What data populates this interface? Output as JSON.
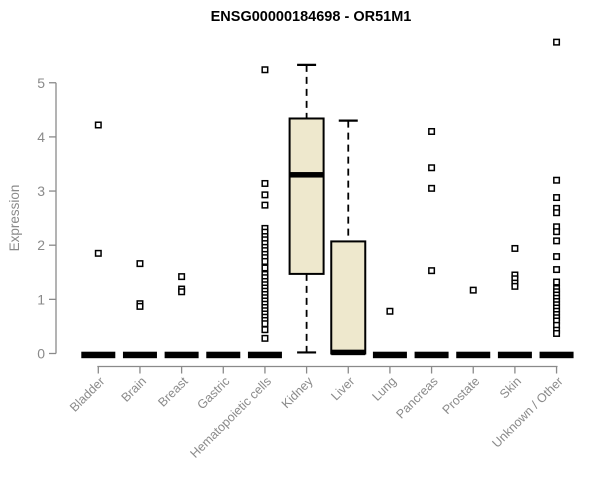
{
  "chart_data": {
    "type": "box",
    "title": "ENSG00000184698 - OR51M1",
    "ylabel": "Expression",
    "xlabel": "",
    "ylim": [
      0,
      5
    ],
    "y_ticks": [
      "0",
      "1",
      "2",
      "3",
      "4",
      "5"
    ],
    "grid": false,
    "legend": false,
    "categories": [
      "Bladder",
      "Brain",
      "Breast",
      "Gastric",
      "Hematopoietic cells",
      "Kidney",
      "Liver",
      "Lung",
      "Pancreas",
      "Prostate",
      "Skin",
      "Unknown / Other"
    ],
    "series": [
      {
        "name": "Bladder",
        "box": {
          "low": 0,
          "q1": 0,
          "med": 0,
          "q3": 0,
          "high": 0
        },
        "outliers": [
          4.22,
          1.85
        ]
      },
      {
        "name": "Brain",
        "box": {
          "low": 0,
          "q1": 0,
          "med": 0,
          "q3": 0,
          "high": 0
        },
        "outliers": [
          1.66,
          0.92,
          0.87
        ]
      },
      {
        "name": "Breast",
        "box": {
          "low": 0,
          "q1": 0,
          "med": 0,
          "q3": 0,
          "high": 0
        },
        "outliers": [
          1.42,
          1.19,
          1.14
        ]
      },
      {
        "name": "Gastric",
        "box": {
          "low": 0,
          "q1": 0,
          "med": 0,
          "q3": 0,
          "high": 0
        },
        "outliers": []
      },
      {
        "name": "Hematopoietic cells",
        "box": {
          "low": 0,
          "q1": 0,
          "med": 0,
          "q3": 0,
          "high": 0
        },
        "outliers": [
          5.24,
          3.14,
          2.93,
          2.74,
          2.31,
          2.24,
          2.16,
          2.1,
          2.03,
          1.96,
          1.9,
          1.83,
          1.77,
          1.7,
          1.58,
          1.46,
          1.4,
          1.33,
          1.27,
          1.21,
          1.15,
          1.09,
          1.03,
          0.97,
          0.91,
          0.85,
          0.79,
          0.73,
          0.67,
          0.61,
          0.55,
          0.44,
          0.28
        ]
      },
      {
        "name": "Kidney",
        "box": {
          "low": 0.02,
          "q1": 1.47,
          "med": 3.3,
          "q3": 4.34,
          "high": 5.33
        },
        "outliers": []
      },
      {
        "name": "Liver",
        "box": {
          "low": 0,
          "q1": 0,
          "med": 0.02,
          "q3": 2.07,
          "high": 4.3
        },
        "outliers": []
      },
      {
        "name": "Lung",
        "box": {
          "low": 0,
          "q1": 0,
          "med": 0,
          "q3": 0,
          "high": 0
        },
        "outliers": [
          0.78
        ]
      },
      {
        "name": "Pancreas",
        "box": {
          "low": 0,
          "q1": 0,
          "med": 0,
          "q3": 0,
          "high": 0
        },
        "outliers": [
          4.1,
          3.43,
          3.05,
          1.53
        ]
      },
      {
        "name": "Prostate",
        "box": {
          "low": 0,
          "q1": 0,
          "med": 0,
          "q3": 0,
          "high": 0
        },
        "outliers": [
          1.17
        ]
      },
      {
        "name": "Skin",
        "box": {
          "low": 0,
          "q1": 0,
          "med": 0,
          "q3": 0,
          "high": 0
        },
        "outliers": [
          1.94,
          1.45,
          1.38,
          1.3,
          1.24
        ]
      },
      {
        "name": "Unknown / Other",
        "box": {
          "low": 0,
          "q1": 0,
          "med": 0,
          "q3": 0,
          "high": 0
        },
        "outliers": [
          5.75,
          3.2,
          2.88,
          2.68,
          2.6,
          2.34,
          2.25,
          2.08,
          1.79,
          1.55,
          1.32,
          1.2,
          1.14,
          1.08,
          1.02,
          0.96,
          0.9,
          0.84,
          0.78,
          0.72,
          0.66,
          0.6,
          0.52,
          0.43,
          0.37
        ]
      }
    ],
    "colors": {
      "box_fill": "#EEE8CD",
      "box_stroke": "#000000",
      "median": "#000000",
      "whisker": "#000000",
      "outlier_fill": "#ffffff",
      "outlier_stroke": "#000000",
      "axis": "#8a8a8a",
      "tick_label": "#8a8a8a",
      "title": "#000000",
      "background": "#ffffff"
    }
  }
}
